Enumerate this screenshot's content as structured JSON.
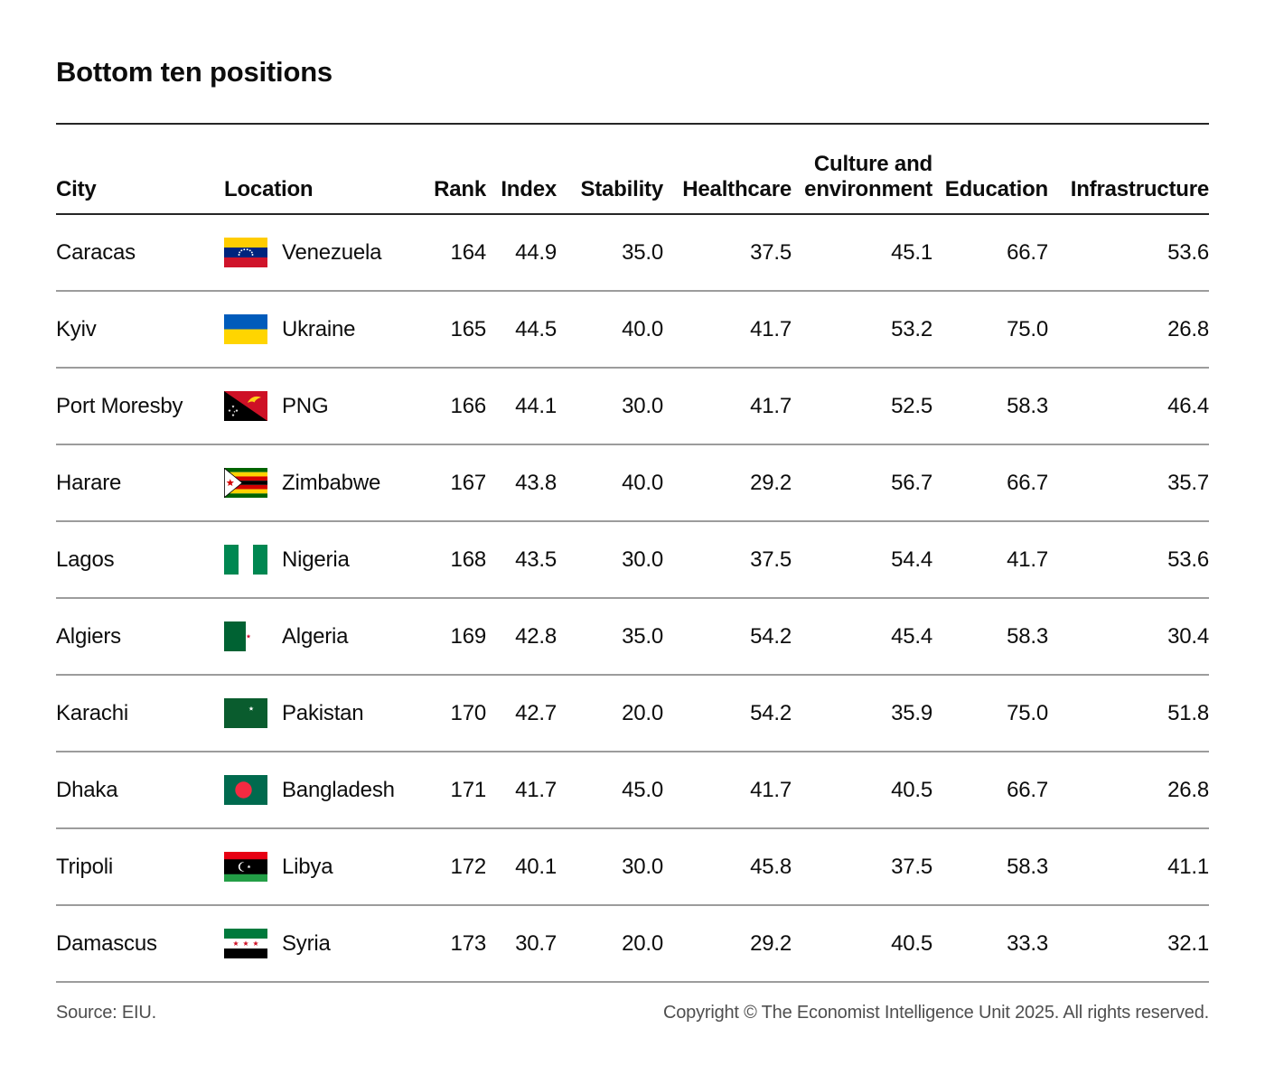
{
  "title": "Bottom ten positions",
  "table": {
    "headers": {
      "city": "City",
      "location": "Location",
      "rank": "Rank",
      "index": "Index",
      "stability": "Stability",
      "healthcare": "Healthcare",
      "culture_line1": "Culture and",
      "culture_line2": "environment",
      "education": "Education",
      "infrastructure": "Infrastructure"
    },
    "rows": [
      {
        "city": "Caracas",
        "flag": "venezuela",
        "location": "Venezuela",
        "rank": "164",
        "index": "44.9",
        "stability": "35.0",
        "healthcare": "37.5",
        "culture": "45.1",
        "education": "66.7",
        "infrastructure": "53.6"
      },
      {
        "city": "Kyiv",
        "flag": "ukraine",
        "location": "Ukraine",
        "rank": "165",
        "index": "44.5",
        "stability": "40.0",
        "healthcare": "41.7",
        "culture": "53.2",
        "education": "75.0",
        "infrastructure": "26.8"
      },
      {
        "city": "Port Moresby",
        "flag": "png",
        "location": "PNG",
        "rank": "166",
        "index": "44.1",
        "stability": "30.0",
        "healthcare": "41.7",
        "culture": "52.5",
        "education": "58.3",
        "infrastructure": "46.4"
      },
      {
        "city": "Harare",
        "flag": "zimbabwe",
        "location": "Zimbabwe",
        "rank": "167",
        "index": "43.8",
        "stability": "40.0",
        "healthcare": "29.2",
        "culture": "56.7",
        "education": "66.7",
        "infrastructure": "35.7"
      },
      {
        "city": "Lagos",
        "flag": "nigeria",
        "location": "Nigeria",
        "rank": "168",
        "index": "43.5",
        "stability": "30.0",
        "healthcare": "37.5",
        "culture": "54.4",
        "education": "41.7",
        "infrastructure": "53.6"
      },
      {
        "city": "Algiers",
        "flag": "algeria",
        "location": "Algeria",
        "rank": "169",
        "index": "42.8",
        "stability": "35.0",
        "healthcare": "54.2",
        "culture": "45.4",
        "education": "58.3",
        "infrastructure": "30.4"
      },
      {
        "city": "Karachi",
        "flag": "pakistan",
        "location": "Pakistan",
        "rank": "170",
        "index": "42.7",
        "stability": "20.0",
        "healthcare": "54.2",
        "culture": "35.9",
        "education": "75.0",
        "infrastructure": "51.8"
      },
      {
        "city": "Dhaka",
        "flag": "bangladesh",
        "location": "Bangladesh",
        "rank": "171",
        "index": "41.7",
        "stability": "45.0",
        "healthcare": "41.7",
        "culture": "40.5",
        "education": "66.7",
        "infrastructure": "26.8"
      },
      {
        "city": "Tripoli",
        "flag": "libya",
        "location": "Libya",
        "rank": "172",
        "index": "40.1",
        "stability": "30.0",
        "healthcare": "45.8",
        "culture": "37.5",
        "education": "58.3",
        "infrastructure": "41.1"
      },
      {
        "city": "Damascus",
        "flag": "syria",
        "location": "Syria",
        "rank": "173",
        "index": "30.7",
        "stability": "20.0",
        "healthcare": "29.2",
        "culture": "40.5",
        "education": "33.3",
        "infrastructure": "32.1"
      }
    ]
  },
  "footer": {
    "source": "Source: EIU.",
    "copyright": "Copyright © The Economist Intelligence Unit 2025. All rights reserved."
  },
  "colors": {
    "rule_dark": "#262626",
    "rule_light": "#9c9c9c",
    "text": "#0d0d0d",
    "footer_text": "#4f4f4f"
  },
  "chart_data": {
    "type": "table",
    "title": "Bottom ten positions",
    "columns": [
      "City",
      "Location",
      "Rank",
      "Index",
      "Stability",
      "Healthcare",
      "Culture and environment",
      "Education",
      "Infrastructure"
    ],
    "rows": [
      [
        "Caracas",
        "Venezuela",
        164,
        44.9,
        35.0,
        37.5,
        45.1,
        66.7,
        53.6
      ],
      [
        "Kyiv",
        "Ukraine",
        165,
        44.5,
        40.0,
        41.7,
        53.2,
        75.0,
        26.8
      ],
      [
        "Port Moresby",
        "PNG",
        166,
        44.1,
        30.0,
        41.7,
        52.5,
        58.3,
        46.4
      ],
      [
        "Harare",
        "Zimbabwe",
        167,
        43.8,
        40.0,
        29.2,
        56.7,
        66.7,
        35.7
      ],
      [
        "Lagos",
        "Nigeria",
        168,
        43.5,
        30.0,
        37.5,
        54.4,
        41.7,
        53.6
      ],
      [
        "Algiers",
        "Algeria",
        169,
        42.8,
        35.0,
        54.2,
        45.4,
        58.3,
        30.4
      ],
      [
        "Karachi",
        "Pakistan",
        170,
        42.7,
        20.0,
        54.2,
        35.9,
        75.0,
        51.8
      ],
      [
        "Dhaka",
        "Bangladesh",
        171,
        41.7,
        45.0,
        41.7,
        40.5,
        66.7,
        26.8
      ],
      [
        "Tripoli",
        "Libya",
        172,
        40.1,
        30.0,
        45.8,
        37.5,
        58.3,
        41.1
      ],
      [
        "Damascus",
        "Syria",
        173,
        30.7,
        20.0,
        29.2,
        40.5,
        33.3,
        32.1
      ]
    ],
    "source": "EIU",
    "legend_position": "none",
    "grid": "horizontal-rules"
  }
}
